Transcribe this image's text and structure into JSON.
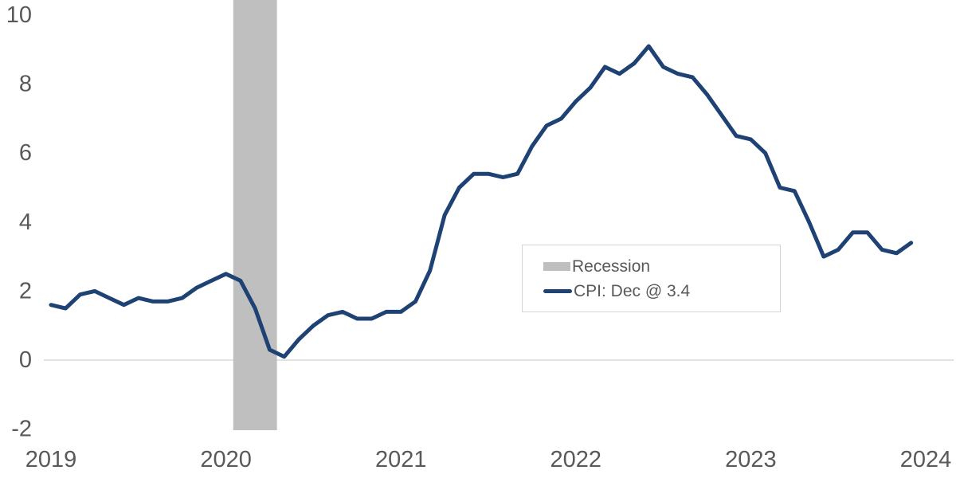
{
  "chart_data": {
    "type": "line",
    "title": "",
    "x_unit": "month",
    "x_start": "2019-01",
    "x_end": "2023-12",
    "x_tick_labels": [
      "2019",
      "2020",
      "2021",
      "2022",
      "2023",
      "2024"
    ],
    "y_ticks": [
      10,
      8,
      6,
      4,
      2,
      0,
      -2
    ],
    "ylim": [
      -2.1,
      10.4
    ],
    "grid": "single horizontal gridline at 0 only",
    "legend_position": "boxed, center-right of plot",
    "series": [
      {
        "name": "CPI: Dec @ 3.4",
        "color": "#1e4273",
        "values": [
          1.6,
          1.5,
          1.9,
          2.0,
          1.8,
          1.6,
          1.8,
          1.7,
          1.7,
          1.8,
          2.1,
          2.3,
          2.5,
          2.3,
          1.5,
          0.3,
          0.1,
          0.6,
          1.0,
          1.3,
          1.4,
          1.2,
          1.2,
          1.4,
          1.4,
          1.7,
          2.6,
          4.2,
          5.0,
          5.4,
          5.4,
          5.3,
          5.4,
          6.2,
          6.8,
          7.0,
          7.5,
          7.9,
          8.5,
          8.3,
          8.6,
          9.1,
          8.5,
          8.3,
          8.2,
          7.7,
          7.1,
          6.5,
          6.4,
          6.0,
          5.0,
          4.9,
          4.0,
          3.0,
          3.2,
          3.7,
          3.7,
          3.2,
          3.1,
          3.4
        ]
      }
    ],
    "recession_band": {
      "label": "Recession",
      "start": "2020-02",
      "end": "2020-04",
      "color": "#bfbfbf"
    },
    "legend": {
      "items": [
        {
          "label": "Recession",
          "swatch": "band"
        },
        {
          "label": "CPI: Dec @ 3.4",
          "swatch": "line"
        }
      ]
    }
  },
  "colors": {
    "line": "#1e4273",
    "recession_band": "#bfbfbf",
    "axis_text": "#595959",
    "zero_gridline": "#d9d9d9",
    "legend_border": "#d4d4d4",
    "background": "#ffffff"
  }
}
